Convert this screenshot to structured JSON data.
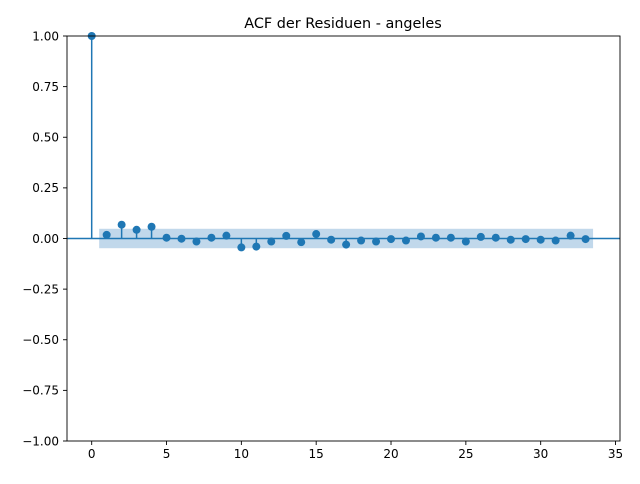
{
  "chart_data": {
    "type": "stem",
    "title": "ACF der Residuen - angeles",
    "xlabel": "",
    "ylabel": "",
    "xlim": [
      -1.65,
      35.3
    ],
    "ylim": [
      -1.0,
      1.0
    ],
    "xticks": [
      0,
      5,
      10,
      15,
      20,
      25,
      30,
      35
    ],
    "yticks": [
      -1.0,
      -0.75,
      -0.5,
      -0.25,
      0.0,
      0.25,
      0.5,
      0.75,
      1.0
    ],
    "ytick_labels": [
      "−1.00",
      "−0.75",
      "−0.50",
      "−0.25",
      "0.00",
      "0.25",
      "0.50",
      "0.75",
      "1.00"
    ],
    "grid": false,
    "colors": {
      "stem": "#1f77b4",
      "confidence_band": "#a6c7e3"
    },
    "lags": [
      0,
      1,
      2,
      3,
      4,
      5,
      6,
      7,
      8,
      9,
      10,
      11,
      12,
      13,
      14,
      15,
      16,
      17,
      18,
      19,
      20,
      21,
      22,
      23,
      24,
      25,
      26,
      27,
      28,
      29,
      30,
      31,
      32,
      33
    ],
    "values": [
      1.0,
      0.018,
      0.068,
      0.043,
      0.058,
      0.004,
      -0.001,
      -0.015,
      0.004,
      0.014,
      -0.044,
      -0.04,
      -0.015,
      0.013,
      -0.018,
      0.022,
      -0.006,
      -0.03,
      -0.01,
      -0.015,
      -0.003,
      -0.01,
      0.01,
      0.004,
      0.004,
      -0.015,
      0.008,
      0.004,
      -0.006,
      -0.003,
      -0.006,
      -0.01,
      0.014,
      -0.003
    ],
    "confidence_band": {
      "x_range": [
        0.5,
        33.5
      ],
      "upper": 0.048,
      "lower": -0.048
    }
  }
}
